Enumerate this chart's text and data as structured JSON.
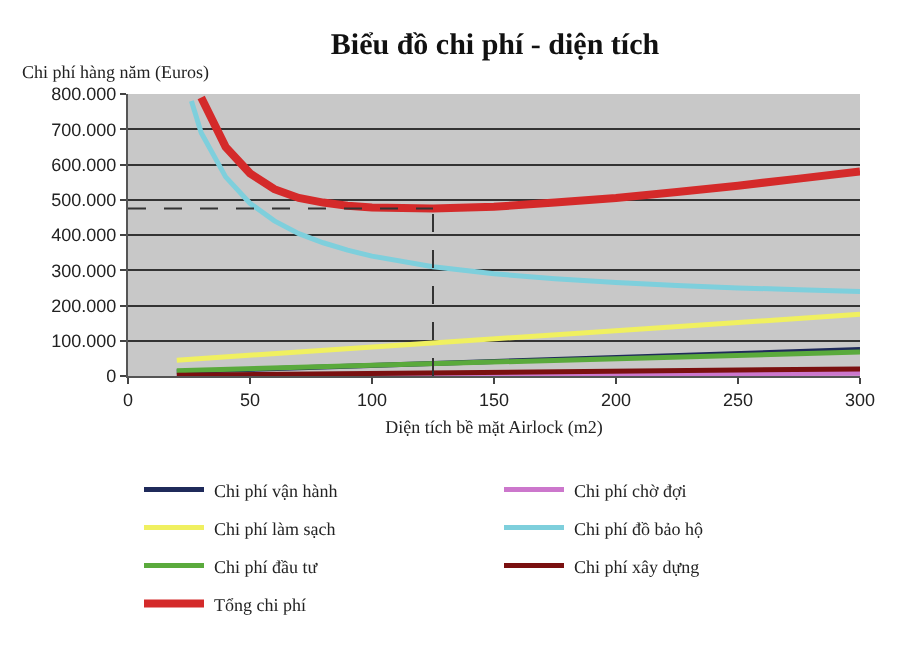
{
  "chart_data": {
    "type": "line",
    "title": "Biểu đồ chi phí - diện tích",
    "xlabel": "Diện tích bề mặt Airlock (m2)",
    "ylabel": "Chi phí hàng năm (Euros)",
    "xlim": [
      0,
      300
    ],
    "xticks": [
      0,
      50,
      100,
      150,
      200,
      250,
      300
    ],
    "ylim": [
      0,
      800000
    ],
    "yticks": [
      {
        "value": 0,
        "label": "0"
      },
      {
        "value": 100000,
        "label": "100.000"
      },
      {
        "value": 200000,
        "label": "200.000"
      },
      {
        "value": 300000,
        "label": "300.000"
      },
      {
        "value": 400000,
        "label": "400.000"
      },
      {
        "value": 500000,
        "label": "500.000"
      },
      {
        "value": 600000,
        "label": "600.000"
      },
      {
        "value": 700000,
        "label": "700.000"
      },
      {
        "value": 800000,
        "label": "800.000"
      }
    ],
    "grid": "y",
    "legend": "bottom",
    "marker": "none",
    "line_style": "solid",
    "series": [
      {
        "name": "Chi phí vận hành",
        "color": "#1f2a5a",
        "x": [
          20,
          300
        ],
        "values": [
          12000,
          75000
        ]
      },
      {
        "name": "Chi phí chờ đợi",
        "color": "#cc77cc",
        "x": [
          20,
          300
        ],
        "values": [
          0,
          8000
        ]
      },
      {
        "name": "Chi phí làm sạch",
        "color": "#f0f060",
        "x": [
          20,
          300
        ],
        "values": [
          45000,
          175000
        ]
      },
      {
        "name": "Chi phí đồ bảo hộ",
        "color": "#7ecfdc",
        "x": [
          26,
          30,
          40,
          50,
          60,
          70,
          80,
          90,
          100,
          125,
          150,
          175,
          200,
          225,
          250,
          275,
          300
        ],
        "values": [
          780000,
          690000,
          565000,
          490000,
          440000,
          404000,
          378000,
          357000,
          340000,
          310000,
          290000,
          276000,
          265000,
          257000,
          250000,
          245000,
          240000
        ]
      },
      {
        "name": "Chi phí đầu tư",
        "color": "#5aaa3c",
        "x": [
          20,
          300
        ],
        "values": [
          15000,
          68000
        ]
      },
      {
        "name": "Chi phí xây dựng",
        "color": "#7a1010",
        "x": [
          20,
          300
        ],
        "values": [
          2000,
          20000
        ]
      },
      {
        "name": "Tổng chi phí",
        "color": "#d42a2a",
        "x": [
          30,
          40,
          50,
          60,
          70,
          80,
          90,
          100,
          125,
          150,
          175,
          200,
          225,
          250,
          275,
          300
        ],
        "values": [
          790000,
          650000,
          575000,
          530000,
          505000,
          492000,
          483000,
          478000,
          475000,
          480000,
          492000,
          505000,
          522000,
          540000,
          560000,
          580000
        ]
      }
    ],
    "ref_lines": [
      {
        "axis": "x",
        "value": 125,
        "color": "#333333",
        "line_style": "dashed"
      },
      {
        "axis": "y",
        "value": 475000,
        "color": "#333333",
        "line_style": "dashed"
      }
    ]
  }
}
